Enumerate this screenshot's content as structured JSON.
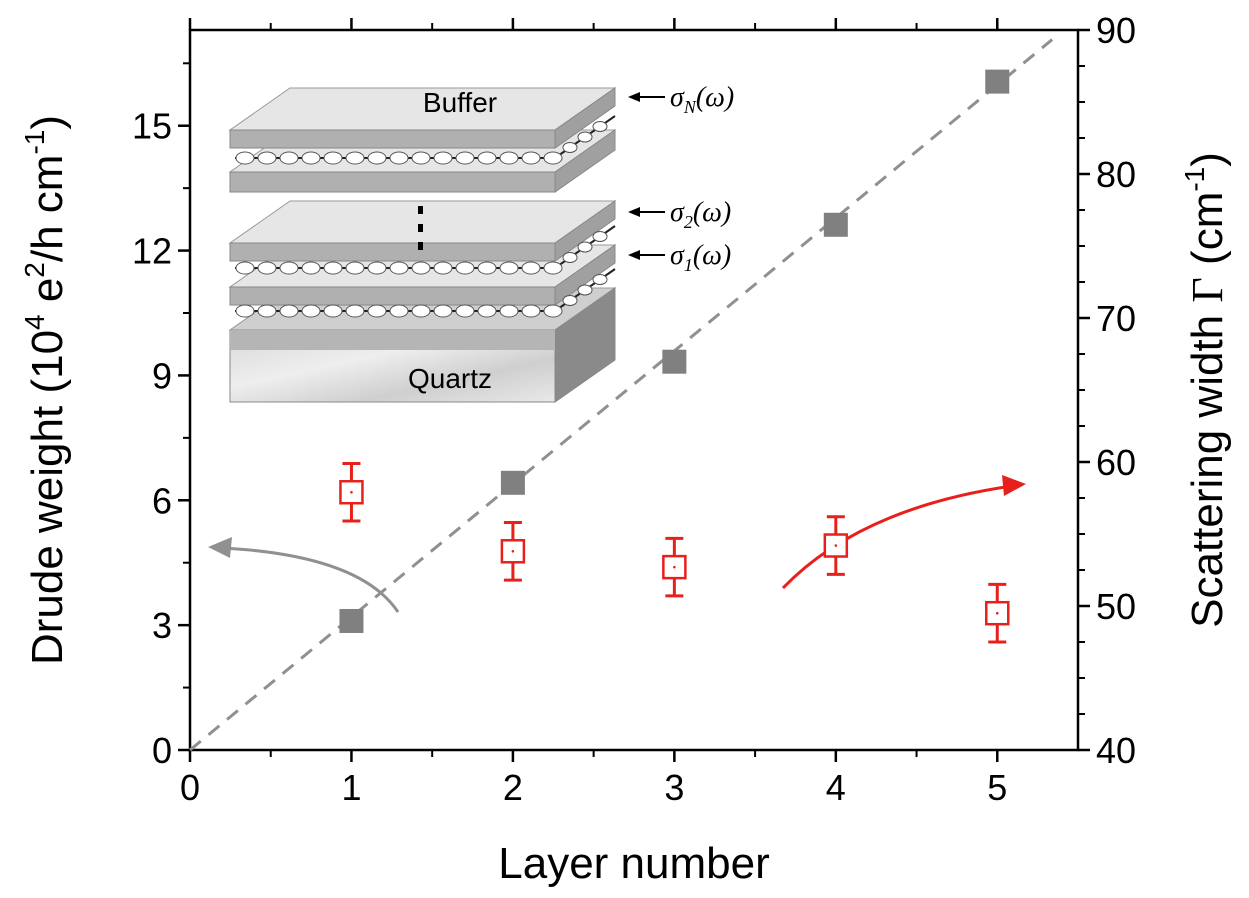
{
  "chart_data": {
    "type": "scatter",
    "xlabel": "Layer number",
    "ylabel": [
      {
        "text": "Drude weight (10"
      },
      {
        "text": "4",
        "sup": true
      },
      {
        "text": " e"
      },
      {
        "text": "2",
        "sup": true
      },
      {
        "text": "/h cm"
      },
      {
        "text": "-1",
        "sup": true
      },
      {
        "text": ")"
      }
    ],
    "y2label": [
      {
        "text": "Scattering width "
      },
      {
        "text": "Γ",
        "serif": true
      },
      {
        "text": " (cm"
      },
      {
        "text": "-1",
        "sup": true
      },
      {
        "text": ")"
      }
    ],
    "x": [
      1,
      2,
      3,
      4,
      5
    ],
    "series": [
      {
        "color": "#808080",
        "marker": "filled-square",
        "values": [
          3.1,
          6.42,
          9.33,
          12.62,
          16.06
        ]
      },
      {
        "color": "#e8201c",
        "marker": "open-square",
        "axis": "y2",
        "values": [
          57.9,
          53.8,
          52.7,
          54.2,
          49.5
        ],
        "errors": [
          2,
          2,
          2,
          2,
          2
        ]
      }
    ],
    "fit_line": {
      "color": "#909090",
      "x": [
        0,
        5.34
      ],
      "values": [
        0,
        17.07
      ]
    },
    "xlim": [
      0,
      5.5
    ],
    "xticks": [
      0,
      1,
      2,
      3,
      4,
      5
    ],
    "xticks_minor": [
      0.5,
      1.5,
      2.5,
      3.5,
      4.5
    ],
    "ylim": [
      0,
      17.3
    ],
    "yticks": [
      0,
      3,
      6,
      9,
      12,
      15
    ],
    "yticks_minor": [
      1.5,
      4.5,
      7.5,
      10.5,
      13.5,
      16.5
    ],
    "y2lim": [
      40,
      90
    ],
    "y2ticks": [
      40,
      50,
      60,
      70,
      80,
      90
    ],
    "y2ticks_minor": [
      42.5,
      45,
      47.5,
      52.5,
      55,
      57.5,
      62.5,
      65,
      67.5,
      72.5,
      75,
      77.5,
      82.5,
      85,
      87.5
    ],
    "inset": {
      "labels": [
        "Buffer",
        "Quartz"
      ],
      "conductivities": [
        {
          "symbol": "σ",
          "subscript": "N",
          "argument": "(ω)"
        },
        {
          "symbol": "σ",
          "subscript": "2",
          "argument": "(ω)"
        },
        {
          "symbol": "σ",
          "subscript": "1",
          "argument": "(ω)"
        }
      ]
    }
  }
}
